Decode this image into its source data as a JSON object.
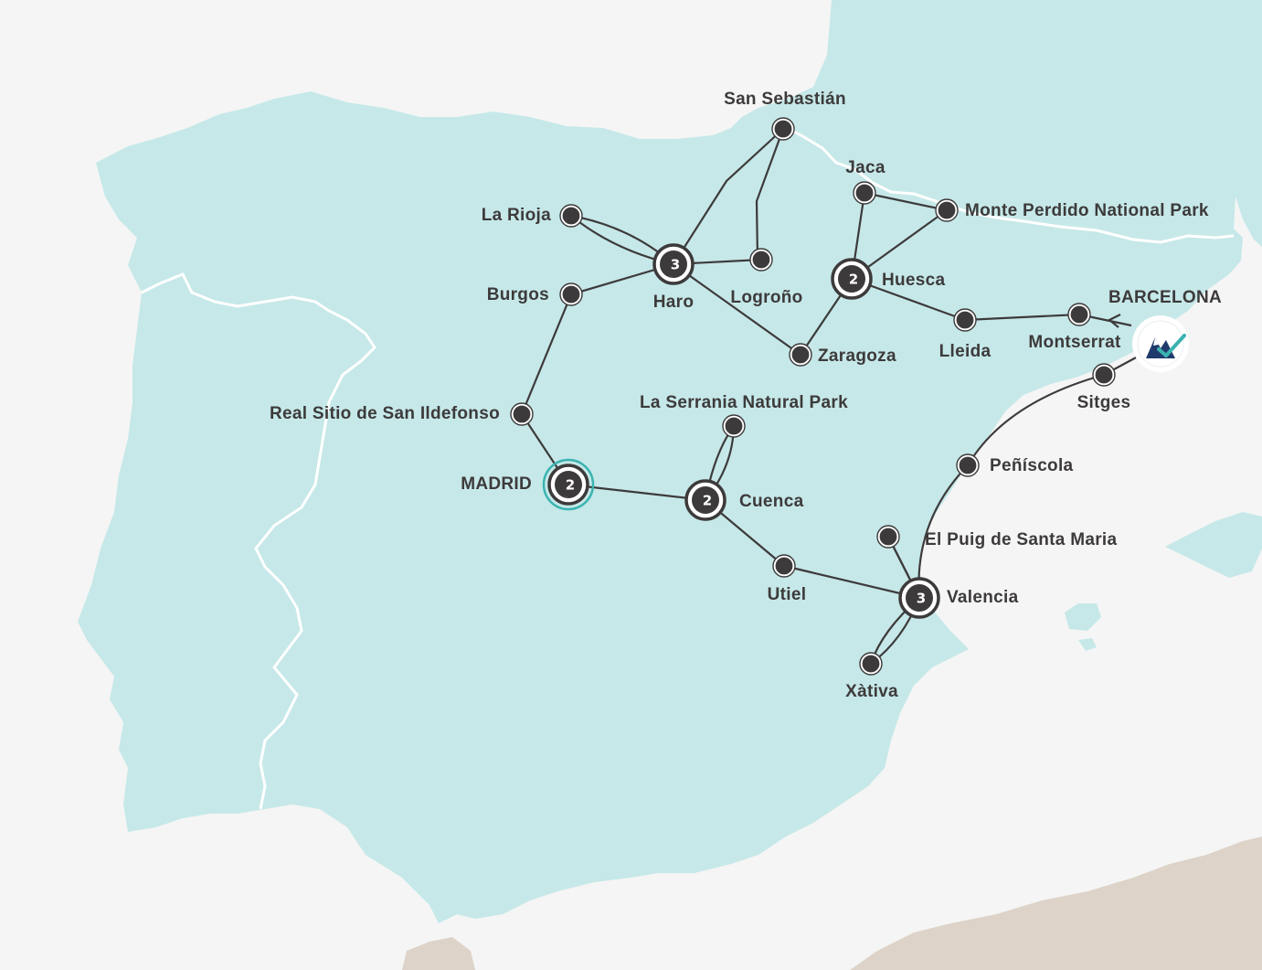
{
  "colors": {
    "sea": "#f5f5f5",
    "spain": "#c6e8e8",
    "neighbors": "#c6e8e8",
    "africa": "#ddd3c8",
    "borders": "#ffffff",
    "route": "#3d3a3b",
    "stop_fill": "#3d3a3b",
    "highlight_ring": "#3bb3b0",
    "logo_navy": "#1f3a6b",
    "logo_teal": "#3bb3b0"
  },
  "stops": [
    {
      "id": "san-sebastian",
      "label": "San Sebastián"
    },
    {
      "id": "la-rioja",
      "label": "La Rioja"
    },
    {
      "id": "haro",
      "label": "Haro",
      "nights": "3"
    },
    {
      "id": "logrono",
      "label": "Logroño"
    },
    {
      "id": "burgos",
      "label": "Burgos"
    },
    {
      "id": "jaca",
      "label": "Jaca"
    },
    {
      "id": "monte-perdido",
      "label": "Monte Perdido National Park"
    },
    {
      "id": "huesca",
      "label": "Huesca",
      "nights": "2"
    },
    {
      "id": "zaragoza",
      "label": "Zaragoza"
    },
    {
      "id": "lleida",
      "label": "Lleida"
    },
    {
      "id": "montserrat",
      "label": "Montserrat"
    },
    {
      "id": "barcelona",
      "label": "BARCELONA"
    },
    {
      "id": "sitges",
      "label": "Sitges"
    },
    {
      "id": "real-sitio",
      "label": "Real Sitio de San Ildefonso"
    },
    {
      "id": "madrid",
      "label": "MADRID",
      "nights": "2"
    },
    {
      "id": "la-serrania",
      "label": "La Serrania Natural Park"
    },
    {
      "id": "cuenca",
      "label": "Cuenca",
      "nights": "2"
    },
    {
      "id": "utiel",
      "label": "Utiel"
    },
    {
      "id": "peniscola",
      "label": "Peñíscola"
    },
    {
      "id": "el-puig",
      "label": "El Puig de Santa Maria"
    },
    {
      "id": "valencia",
      "label": "Valencia",
      "nights": "3"
    },
    {
      "id": "xativa",
      "label": "Xàtiva"
    }
  ],
  "logo": {
    "icon": "mountain-check-logo-icon"
  }
}
